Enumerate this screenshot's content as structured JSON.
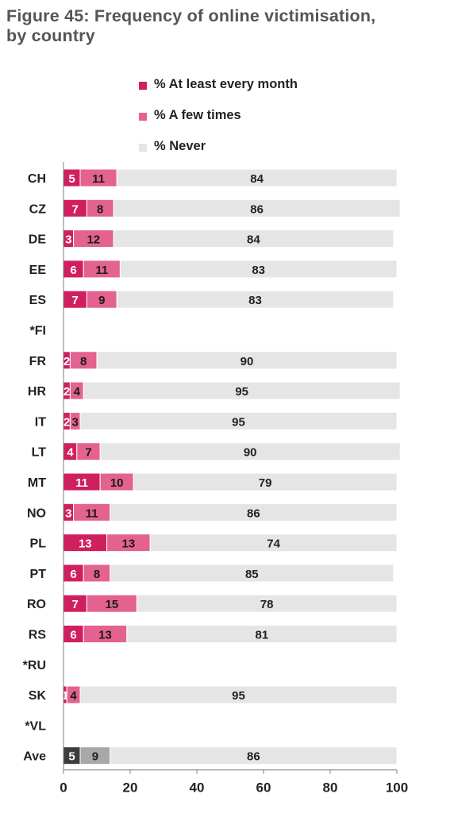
{
  "figure": {
    "title_line1": "Figure 45: Frequency of online victimisation,",
    "title_line2": "by country"
  },
  "colors": {
    "month": "#cf1f5e",
    "few": "#e4628f",
    "never": "#e5e5e5",
    "ave_month": "#3d3d3d",
    "ave_few": "#a8a8a8",
    "ave_never": "#e5e5e5"
  },
  "chart_data": {
    "type": "bar",
    "orientation": "horizontal",
    "stacked": true,
    "categories": [
      "CH",
      "CZ",
      "DE",
      "EE",
      "ES",
      "*FI",
      "FR",
      "HR",
      "IT",
      "LT",
      "MT",
      "NO",
      "PL",
      "PT",
      "RO",
      "RS",
      "*RU",
      "SK",
      "*VL",
      "Ave"
    ],
    "series": [
      {
        "name": "% At least every month",
        "values": [
          5,
          7,
          3,
          6,
          7,
          null,
          2,
          2,
          2,
          4,
          11,
          3,
          13,
          6,
          7,
          6,
          null,
          1,
          null,
          5
        ]
      },
      {
        "name": "% A few times",
        "values": [
          11,
          8,
          12,
          11,
          9,
          null,
          8,
          4,
          3,
          7,
          10,
          11,
          13,
          8,
          15,
          13,
          null,
          4,
          null,
          9
        ]
      },
      {
        "name": "% Never",
        "values": [
          84,
          86,
          84,
          83,
          83,
          null,
          90,
          95,
          95,
          90,
          79,
          86,
          74,
          85,
          78,
          81,
          null,
          95,
          null,
          86
        ]
      }
    ],
    "xlim": [
      0,
      100
    ],
    "xticks": [
      "0",
      "20",
      "40",
      "60",
      "80",
      "100"
    ],
    "legend_position": "top",
    "grid": false
  }
}
